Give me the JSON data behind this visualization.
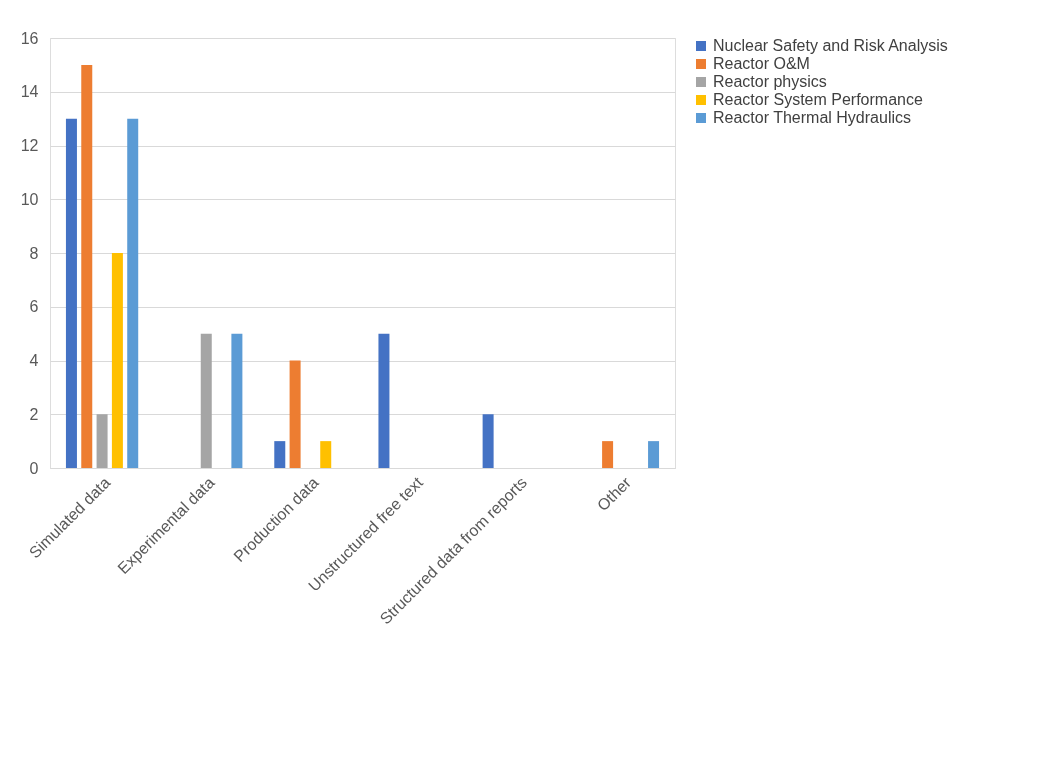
{
  "chart_data": {
    "type": "bar",
    "categories": [
      "Simulated data",
      "Experimental data",
      "Production data",
      "Unstructured free text",
      "Structured data from reports",
      "Other"
    ],
    "series": [
      {
        "name": "Nuclear Safety and Risk Analysis",
        "color": "#4472c4",
        "values": [
          13,
          0,
          1,
          5,
          2,
          0
        ]
      },
      {
        "name": "Reactor O&M",
        "color": "#ed7d31",
        "values": [
          15,
          0,
          4,
          0,
          0,
          1
        ]
      },
      {
        "name": "Reactor physics",
        "color": "#a5a5a5",
        "values": [
          2,
          5,
          0,
          0,
          0,
          0
        ]
      },
      {
        "name": "Reactor System Performance",
        "color": "#ffc000",
        "values": [
          8,
          0,
          1,
          0,
          0,
          0
        ]
      },
      {
        "name": "Reactor Thermal Hydraulics",
        "color": "#5b9bd5",
        "values": [
          13,
          5,
          0,
          0,
          0,
          1
        ]
      }
    ],
    "ylim": [
      0,
      16
    ],
    "yticks": [
      0,
      2,
      4,
      6,
      8,
      10,
      12,
      14,
      16
    ],
    "grid": "y",
    "legend": "right"
  }
}
